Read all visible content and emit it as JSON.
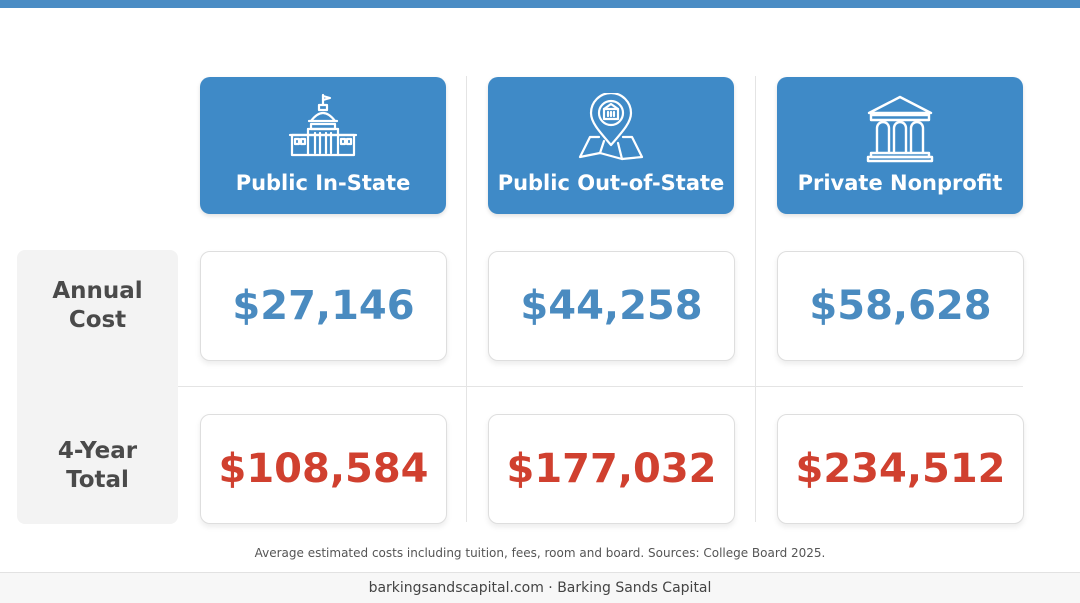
{
  "brand": {
    "accent_color": "#3f8ac7",
    "annual_value_color": "#4a8bc0",
    "total_value_color": "#d0402f"
  },
  "columns": [
    {
      "title": "Public In-State",
      "icon": "capitol-building-icon"
    },
    {
      "title": "Public Out-of-State",
      "icon": "map-location-pin-icon"
    },
    {
      "title": "Private Nonprofit",
      "icon": "classical-building-icon"
    }
  ],
  "rows": {
    "annual": {
      "label_line1": "Annual",
      "label_line2": "Cost",
      "values": [
        "$27,146",
        "$44,258",
        "$58,628"
      ]
    },
    "total": {
      "label_line1": "4-Year",
      "label_line2": "Total",
      "values": [
        "$108,584",
        "$177,032",
        "$234,512"
      ]
    }
  },
  "footnote": "Average estimated costs including tuition, fees, room and board. Sources: College Board 2025.",
  "footer": "barkingsandscapital.com · Barking Sands Capital"
}
